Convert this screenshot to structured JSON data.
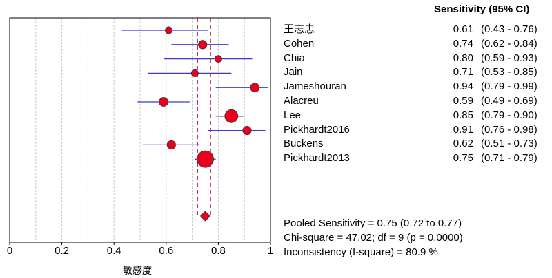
{
  "chart_data": {
    "type": "forest",
    "header": "Sensitivity (95% CI)",
    "xlabel": "敏感度",
    "xlim": [
      0,
      1
    ],
    "xticks": [
      "0",
      "0.2",
      "0.4",
      "0.6",
      "0.8",
      "1"
    ],
    "xtick_values": [
      0,
      0.2,
      0.4,
      0.6,
      0.8,
      1
    ],
    "studies": [
      {
        "name": "王志忠",
        "est": 0.61,
        "lo": 0.43,
        "hi": 0.76,
        "est_text": "0.61",
        "ci_text": "(0.43 - 0.76)"
      },
      {
        "name": "Cohen",
        "est": 0.74,
        "lo": 0.62,
        "hi": 0.84,
        "est_text": "0.74",
        "ci_text": "(0.62 - 0.84)"
      },
      {
        "name": "Chia",
        "est": 0.8,
        "lo": 0.59,
        "hi": 0.93,
        "est_text": "0.80",
        "ci_text": "(0.59 - 0.93)"
      },
      {
        "name": "Jain",
        "est": 0.71,
        "lo": 0.53,
        "hi": 0.85,
        "est_text": "0.71",
        "ci_text": "(0.53 - 0.85)"
      },
      {
        "name": "Jameshouran",
        "est": 0.94,
        "lo": 0.79,
        "hi": 0.99,
        "est_text": "0.94",
        "ci_text": "(0.79 - 0.99)"
      },
      {
        "name": "Alacreu",
        "est": 0.59,
        "lo": 0.49,
        "hi": 0.69,
        "est_text": "0.59",
        "ci_text": "(0.49 - 0.69)"
      },
      {
        "name": "Lee",
        "est": 0.85,
        "lo": 0.79,
        "hi": 0.9,
        "est_text": "0.85",
        "ci_text": "(0.79 - 0.90)"
      },
      {
        "name": "Pickhardt2016",
        "est": 0.91,
        "lo": 0.76,
        "hi": 0.98,
        "est_text": "0.91",
        "ci_text": "(0.76 - 0.98)"
      },
      {
        "name": "Buckens",
        "est": 0.62,
        "lo": 0.51,
        "hi": 0.73,
        "est_text": "0.62",
        "ci_text": "(0.51 - 0.73)"
      },
      {
        "name": "Pickhardt2013",
        "est": 0.75,
        "lo": 0.71,
        "hi": 0.79,
        "est_text": "0.75",
        "ci_text": "(0.71 - 0.79)"
      }
    ],
    "pooled": {
      "est": 0.75,
      "lo": 0.72,
      "hi": 0.77
    },
    "stats": {
      "pooled": "Pooled Sensitivity = 0.75 (0.72 to 0.77)",
      "chi": "Chi-square = 47.02; df =  9 (p = 0.0000)",
      "inconsistency": "Inconsistency (I-square) = 80.9 %"
    },
    "colors": {
      "marker": "#e8001c",
      "ci": "#3b3bd1",
      "pooled_line": "#c8002a",
      "grid": "#c8c8c8"
    }
  }
}
